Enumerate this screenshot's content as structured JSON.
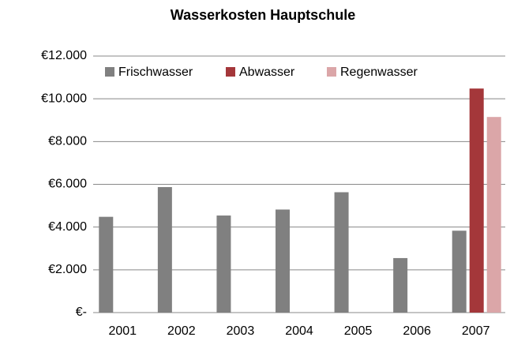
{
  "chart_data": {
    "type": "bar",
    "title": "Wasserkosten Hauptschule",
    "categories": [
      "2001",
      "2002",
      "2003",
      "2004",
      "2005",
      "2006",
      "2007"
    ],
    "series": [
      {
        "name": "Frischwasser",
        "color": "#808080",
        "values": [
          4480,
          5870,
          4540,
          4820,
          5630,
          2550,
          3830
        ]
      },
      {
        "name": "Abwasser",
        "color": "#a4373a",
        "values": [
          null,
          null,
          null,
          null,
          null,
          null,
          10480
        ]
      },
      {
        "name": "Regenwasser",
        "color": "#dba6a8",
        "values": [
          null,
          null,
          null,
          null,
          null,
          null,
          9150
        ]
      }
    ],
    "ylim": [
      0,
      12000
    ],
    "yticks": [
      {
        "value": 0,
        "label": "€-"
      },
      {
        "value": 2000,
        "label": "€2.000"
      },
      {
        "value": 4000,
        "label": "€4.000"
      },
      {
        "value": 6000,
        "label": "€6.000"
      },
      {
        "value": 8000,
        "label": "€8.000"
      },
      {
        "value": 10000,
        "label": "€10.000"
      },
      {
        "value": 12000,
        "label": "€12.000"
      }
    ],
    "grid": true,
    "legend": "top"
  }
}
